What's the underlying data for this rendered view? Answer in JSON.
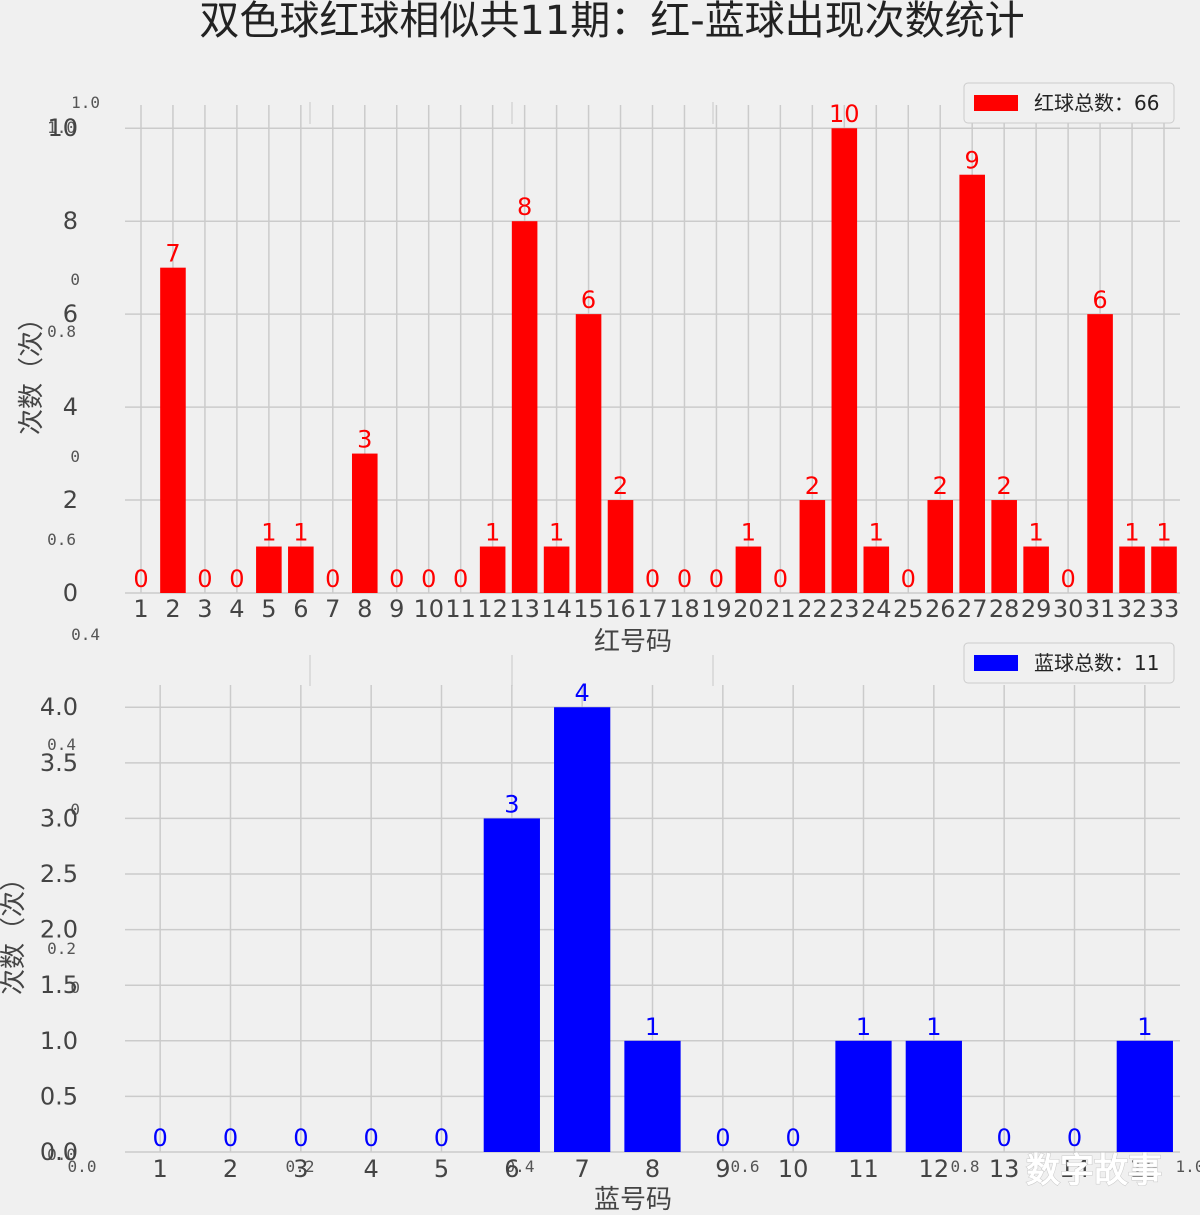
{
  "title": "双色球红球相似共11期：红-蓝球出现次数统计",
  "watermark": "数字故事",
  "ghost_axis": {
    "left_ticks": [
      "1.0",
      "1.0",
      "0",
      "0.8",
      "0",
      "0.6",
      "0.4",
      "0.4",
      "0",
      "0.2",
      "0",
      "0.0"
    ],
    "bottom_ticks": [
      "0.0",
      "0.2",
      "0.4",
      "0.6",
      "0.8",
      "1.0"
    ]
  },
  "chart_data": [
    {
      "type": "bar",
      "color": "#ff0000",
      "xlabel": "红号码",
      "ylabel": "次数（次）",
      "ylim": [
        0,
        10.5
      ],
      "yticks": [
        {
          "value": 0,
          "label": "0"
        },
        {
          "value": 2,
          "label": "2"
        },
        {
          "value": 4,
          "label": "4"
        },
        {
          "value": 6,
          "label": "6"
        },
        {
          "value": 8,
          "label": "8"
        },
        {
          "value": 10,
          "label": "10"
        }
      ],
      "grid": true,
      "legend": {
        "label": "红球总数：66",
        "placement": "top-right"
      },
      "categories": [
        "1",
        "2",
        "3",
        "4",
        "5",
        "6",
        "7",
        "8",
        "9",
        "10",
        "11",
        "12",
        "13",
        "14",
        "15",
        "16",
        "17",
        "18",
        "19",
        "20",
        "21",
        "22",
        "23",
        "24",
        "25",
        "26",
        "27",
        "28",
        "29",
        "30",
        "31",
        "32",
        "33"
      ],
      "values": [
        0,
        7,
        0,
        0,
        1,
        1,
        0,
        3,
        0,
        0,
        0,
        1,
        8,
        1,
        6,
        2,
        0,
        0,
        0,
        1,
        0,
        2,
        10,
        1,
        0,
        2,
        9,
        2,
        1,
        0,
        6,
        1,
        1
      ],
      "value_labels": [
        "0",
        "7",
        "0",
        "0",
        "1",
        "1",
        "0",
        "3",
        "0",
        "0",
        "0",
        "1",
        "8",
        "1",
        "6",
        "2",
        "0",
        "0",
        "0",
        "1",
        "0",
        "2",
        "10",
        "1",
        "0",
        "2",
        "9",
        "2",
        "1",
        "0",
        "6",
        "1",
        "1"
      ]
    },
    {
      "type": "bar",
      "color": "#0000ff",
      "xlabel": "蓝号码",
      "ylabel": "次数（次）",
      "ylim": [
        0,
        4.2
      ],
      "yticks": [
        {
          "value": 0,
          "label": "0.0"
        },
        {
          "value": 0.5,
          "label": "0.5"
        },
        {
          "value": 1,
          "label": "1.0"
        },
        {
          "value": 1.5,
          "label": "1.5"
        },
        {
          "value": 2,
          "label": "2.0"
        },
        {
          "value": 2.5,
          "label": "2.5"
        },
        {
          "value": 3,
          "label": "3.0"
        },
        {
          "value": 3.5,
          "label": "3.5"
        },
        {
          "value": 4,
          "label": "4.0"
        }
      ],
      "grid": true,
      "legend": {
        "label": "蓝球总数：11",
        "placement": "top-right"
      },
      "categories": [
        "1",
        "2",
        "3",
        "4",
        "5",
        "6",
        "7",
        "8",
        "9",
        "10",
        "11",
        "12",
        "13",
        "14",
        "15"
      ],
      "values": [
        0,
        0,
        0,
        0,
        0,
        3,
        4,
        1,
        0,
        0,
        1,
        1,
        0,
        0,
        1
      ],
      "value_labels": [
        "0",
        "0",
        "0",
        "0",
        "0",
        "3",
        "4",
        "1",
        "0",
        "0",
        "1",
        "1",
        "0",
        "0",
        "1"
      ]
    }
  ]
}
